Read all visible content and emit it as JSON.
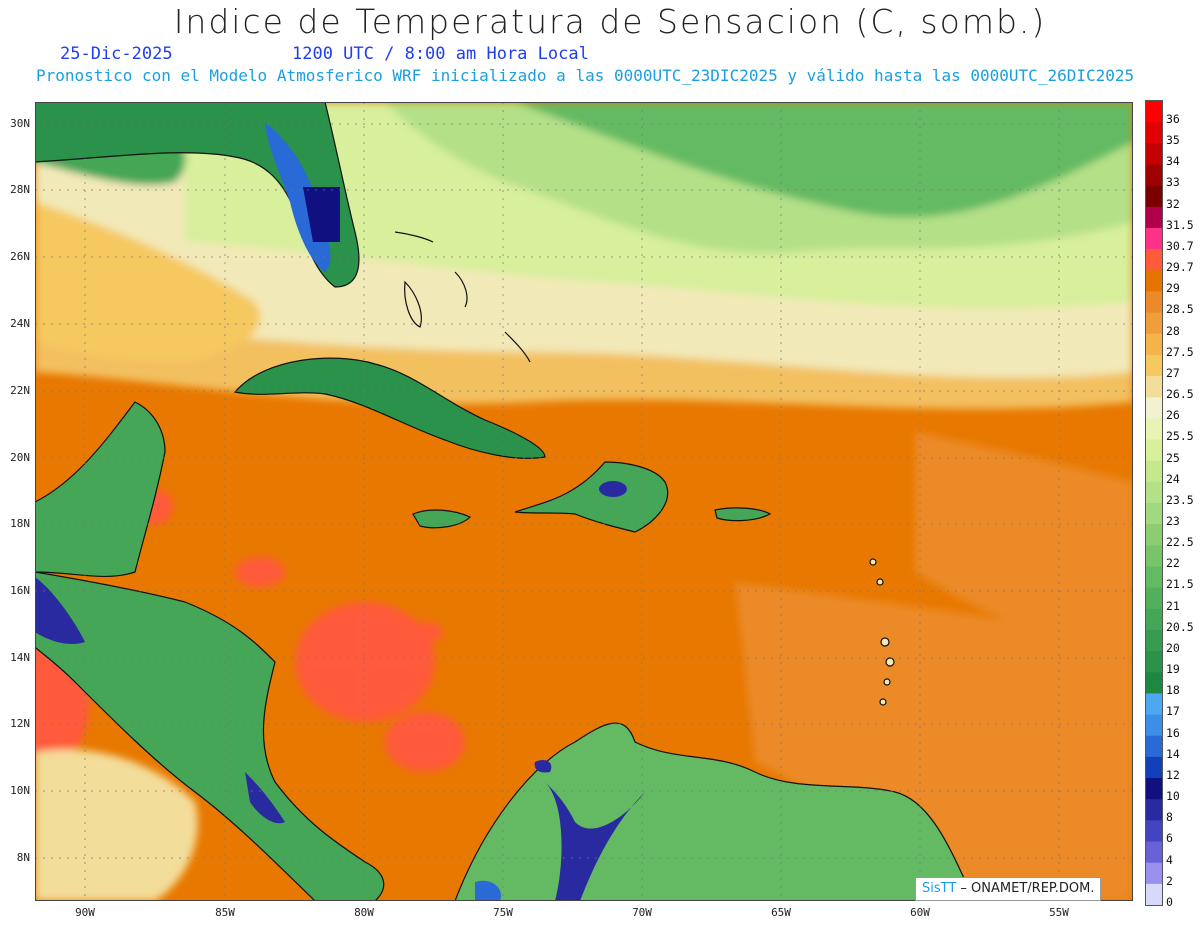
{
  "header": {
    "title": "Indice de Temperatura de Sensacion (C, somb.)",
    "date": "25-Dic-2025",
    "time": "1200 UTC / 8:00 am Hora Local",
    "model_info": "Pronostico con el Modelo Atmosferico WRF inicializado a las 0000UTC_23DIC2025 y válido hasta las  0000UTC_26DIC2025"
  },
  "axes": {
    "lat_labels": [
      "30N",
      "28N",
      "26N",
      "24N",
      "22N",
      "20N",
      "18N",
      "16N",
      "14N",
      "12N",
      "10N",
      "8N"
    ],
    "lon_labels": [
      "90W",
      "85W",
      "80W",
      "75W",
      "70W",
      "65W",
      "60W",
      "55W"
    ]
  },
  "colorbar": {
    "labels": [
      "36",
      "35",
      "34",
      "33",
      "32",
      "31.5",
      "30.7",
      "29.7",
      "29",
      "28.5",
      "28",
      "27.5",
      "27",
      "26.5",
      "26",
      "25.5",
      "25",
      "24",
      "23.5",
      "23",
      "22.5",
      "22",
      "21.5",
      "21",
      "20.5",
      "20",
      "19",
      "18",
      "17",
      "16",
      "14",
      "12",
      "10",
      "8",
      "6",
      "4",
      "2",
      "0"
    ],
    "colors": [
      "#ff0000",
      "#e20000",
      "#c40000",
      "#a00000",
      "#7a0000",
      "#b0004a",
      "#ff3088",
      "#ff5a3a",
      "#e87400",
      "#eb8a28",
      "#f09e3c",
      "#f4b448",
      "#f6c860",
      "#f3dd9a",
      "#f2f1d2",
      "#e9f3b4",
      "#d8ef9c",
      "#c6e88c",
      "#b4e088",
      "#a2d880",
      "#8ccd74",
      "#78c468",
      "#64ba62",
      "#52b05c",
      "#44a656",
      "#369c50",
      "#2a924a",
      "#1e8842",
      "#4da8f0",
      "#3c8ee6",
      "#2a6ad6",
      "#1240b8",
      "#101080",
      "#2a2aa0",
      "#4444c0",
      "#6a60d8",
      "#9c90ee",
      "#d8d8f8"
    ]
  },
  "credit": {
    "logo": "SisTT",
    "text": " – ONAMET/REP.DOM."
  },
  "legend": {
    "ocean": "#e8780a"
  }
}
